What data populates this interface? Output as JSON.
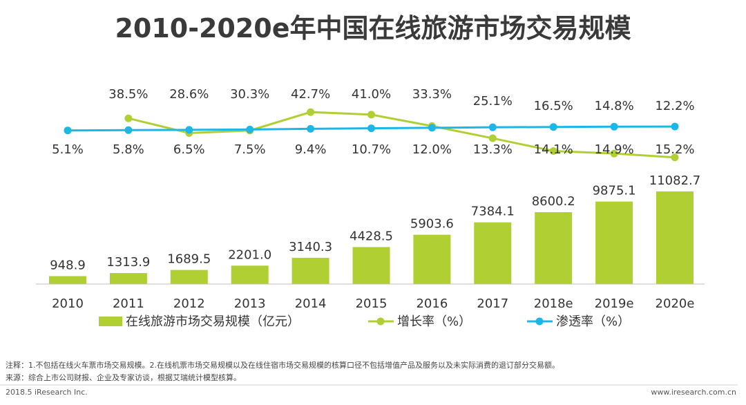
{
  "chart_data": {
    "type": "bar+line",
    "title": "2010-2020e年中国在线旅游市场交易规模",
    "categories": [
      "2010",
      "2011",
      "2012",
      "2013",
      "2014",
      "2015",
      "2016",
      "2017",
      "2018e",
      "2019e",
      "2020e"
    ],
    "series": [
      {
        "name": "在线旅游市场交易规模（亿元）",
        "kind": "bar",
        "values": [
          948.9,
          1313.9,
          1689.5,
          2201.0,
          3140.3,
          4428.5,
          5903.6,
          7384.1,
          8600.2,
          9875.1,
          11082.7
        ],
        "labels": [
          "948.9",
          "1313.9",
          "1689.5",
          "2201.0",
          "3140.3",
          "4428.5",
          "5903.6",
          "7384.1",
          "8600.2",
          "9875.1",
          "11082.7"
        ]
      },
      {
        "name": "增长率（%）",
        "kind": "line",
        "values": [
          null,
          38.5,
          28.6,
          30.3,
          42.7,
          41.0,
          33.3,
          25.1,
          16.5,
          14.8,
          12.2
        ],
        "labels": [
          "",
          "38.5%",
          "28.6%",
          "30.3%",
          "42.7%",
          "41.0%",
          "33.3%",
          "25.1%",
          "16.5%",
          "14.8%",
          "12.2%"
        ]
      },
      {
        "name": "渗透率（%）",
        "kind": "line",
        "values": [
          5.1,
          5.8,
          6.5,
          7.5,
          9.4,
          10.7,
          12.0,
          13.3,
          14.1,
          14.9,
          15.2
        ],
        "labels": [
          "5.1%",
          "5.8%",
          "6.5%",
          "7.5%",
          "9.4%",
          "10.7%",
          "12.0%",
          "13.3%",
          "14.1%",
          "14.9%",
          "15.2%"
        ]
      }
    ],
    "bar_ylim": [
      0,
      12000
    ],
    "line_ylim": [
      0,
      45
    ],
    "legend": "bottom"
  },
  "colors": {
    "bar": "#b0cf33",
    "growth_line": "#b0cf33",
    "penetration_line": "#1bb7e8",
    "axis": "#bfbfbf",
    "text": "#333333"
  },
  "notes": {
    "note_line": "注释：1.不包括在线火车票市场交易规模。2.在线机票市场交易规模以及在线住宿市场交易规模的核算口径不包括增值产品及服务以及未实际消费的退订部分交易额。",
    "source_line": "来源：综合上市公司财报、企业及专家访谈，根据艾瑞统计模型核算。"
  },
  "footer": {
    "left": "2018.5 iResearch Inc.",
    "right": "www.iresearch.com.cn"
  }
}
